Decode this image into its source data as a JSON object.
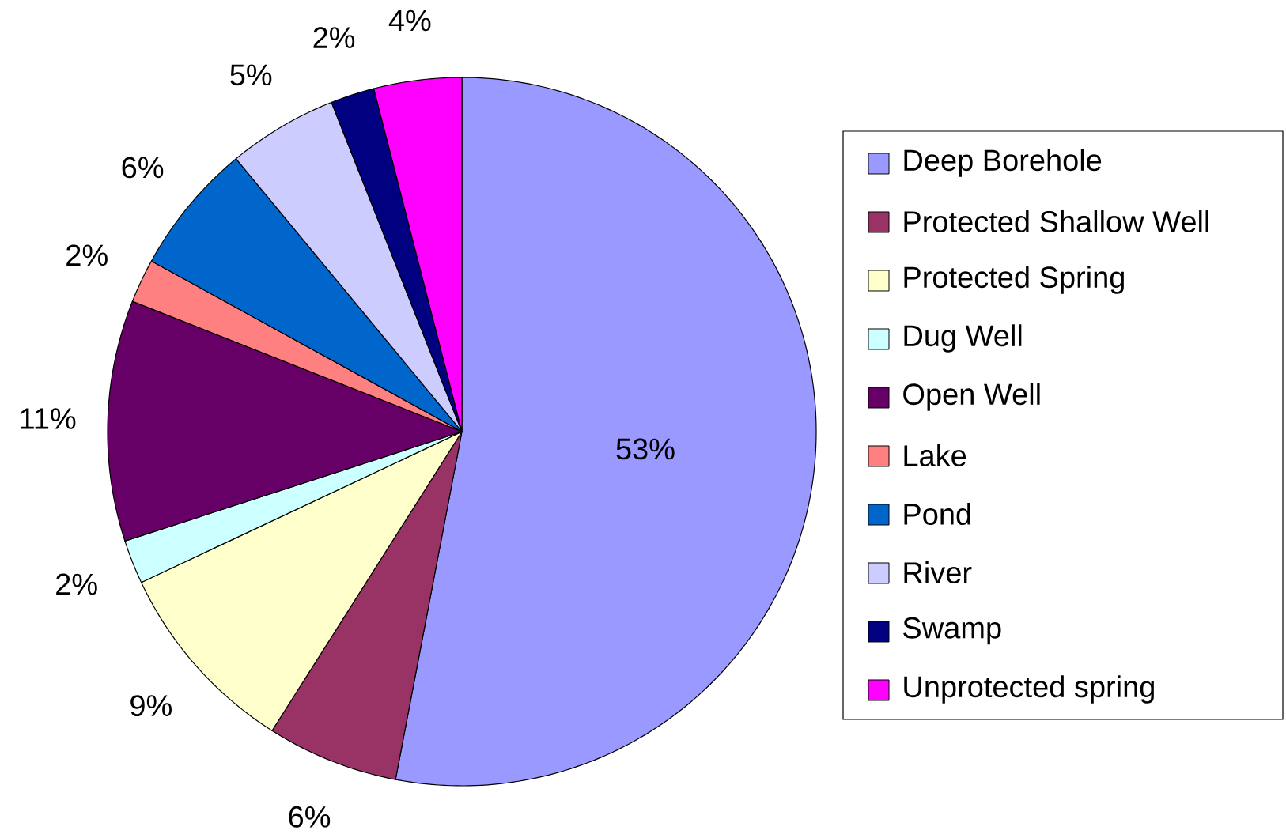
{
  "chart_data": {
    "type": "pie",
    "categories": [
      "Deep Borehole",
      "Protected Shallow Well",
      "Protected Spring",
      "Dug Well",
      "Open Well",
      "Lake",
      "Pond",
      "River",
      "Swamp",
      "Unprotected spring"
    ],
    "values": [
      53,
      6,
      9,
      2,
      11,
      2,
      6,
      5,
      2,
      4
    ],
    "value_labels": [
      "53%",
      "6%",
      "9%",
      "2%",
      "11%",
      "2%",
      "6%",
      "5%",
      "2%",
      "4%"
    ],
    "colors": [
      "#9999ff",
      "#993366",
      "#ffffcc",
      "#ccffff",
      "#660066",
      "#ff8080",
      "#0066cc",
      "#ccccff",
      "#000080",
      "#ff00ff"
    ],
    "legend": "right"
  }
}
